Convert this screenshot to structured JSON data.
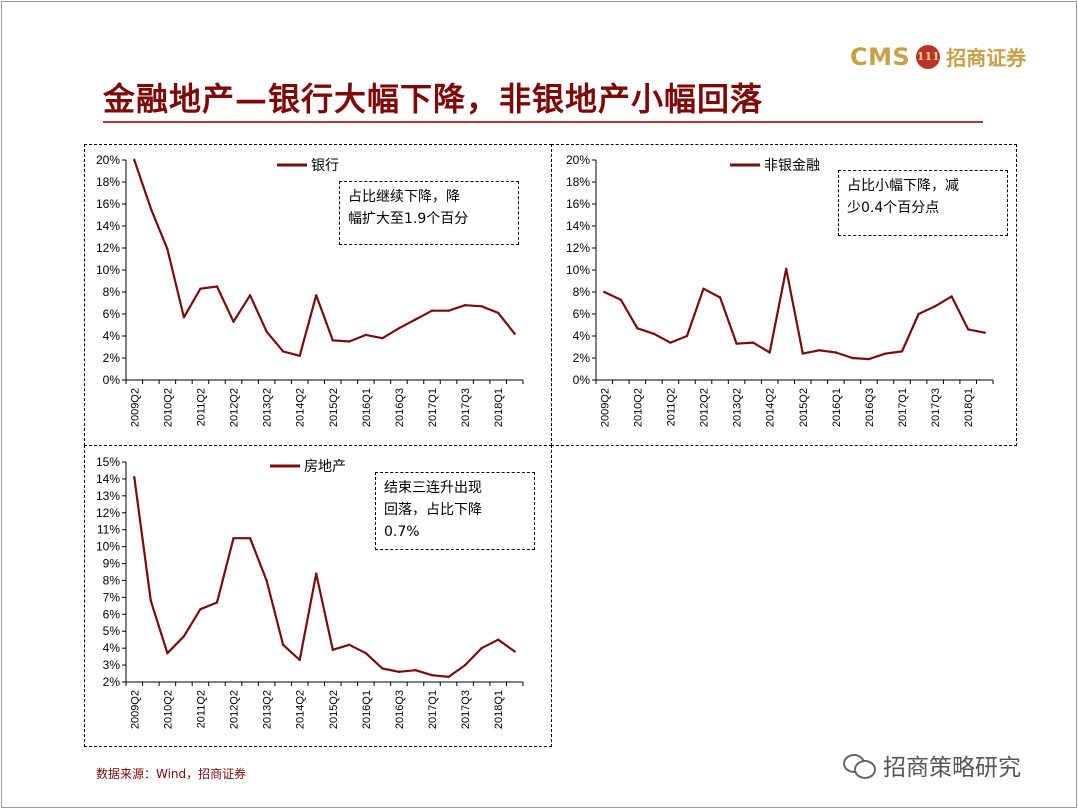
{
  "header": {
    "logo_cms": "CMS",
    "logo_badge": "111",
    "logo_name": "招商证券",
    "title": "金融地产—银行大幅下降，非银地产小幅回落"
  },
  "chart_data": [
    {
      "type": "line",
      "legend": "银行",
      "series_color": "#7b0c0c",
      "x": [
        "2009Q2",
        "2009Q4",
        "2010Q2",
        "2010Q4",
        "2011Q2",
        "2011Q4",
        "2012Q2",
        "2012Q4",
        "2013Q2",
        "2013Q4",
        "2014Q2",
        "2014Q4",
        "2015Q2",
        "2015Q4",
        "2016Q1",
        "2016Q2",
        "2016Q3",
        "2016Q4",
        "2017Q1",
        "2017Q2",
        "2017Q3",
        "2017Q4",
        "2018Q1",
        "2018Q2"
      ],
      "x_tick_labels": [
        "2009Q2",
        "2010Q2",
        "2011Q2",
        "2012Q2",
        "2013Q2",
        "2014Q2",
        "2015Q2",
        "2016Q1",
        "2016Q3",
        "2017Q1",
        "2017Q3",
        "2018Q1"
      ],
      "values": [
        20.0,
        15.6,
        11.9,
        5.7,
        8.3,
        8.5,
        5.3,
        7.7,
        4.4,
        2.6,
        2.2,
        7.7,
        3.6,
        3.5,
        4.1,
        3.8,
        4.7,
        5.5,
        6.3,
        6.3,
        6.8,
        6.7,
        6.1,
        4.2
      ],
      "y_ticks": [
        "0%",
        "2%",
        "4%",
        "6%",
        "8%",
        "10%",
        "12%",
        "14%",
        "16%",
        "18%",
        "20%"
      ],
      "ylim": [
        0,
        20
      ],
      "annotation": [
        "占比继续下降，降",
        "幅扩大至1.9个百分"
      ]
    },
    {
      "type": "line",
      "legend": "非银金融",
      "series_color": "#7b0c0c",
      "x": [
        "2009Q2",
        "2009Q4",
        "2010Q2",
        "2010Q4",
        "2011Q2",
        "2011Q4",
        "2012Q2",
        "2012Q4",
        "2013Q2",
        "2013Q4",
        "2014Q2",
        "2014Q4",
        "2015Q2",
        "2015Q4",
        "2016Q1",
        "2016Q2",
        "2016Q3",
        "2016Q4",
        "2017Q1",
        "2017Q2",
        "2017Q3",
        "2017Q4",
        "2018Q1",
        "2018Q2"
      ],
      "x_tick_labels": [
        "2009Q2",
        "2010Q2",
        "2011Q2",
        "2012Q2",
        "2013Q2",
        "2014Q2",
        "2015Q2",
        "2016Q1",
        "2016Q3",
        "2017Q1",
        "2017Q3",
        "2018Q1"
      ],
      "values": [
        8.0,
        7.3,
        4.7,
        4.2,
        3.4,
        4.0,
        8.3,
        7.5,
        3.3,
        3.4,
        2.5,
        10.1,
        2.4,
        2.7,
        2.5,
        2.0,
        1.9,
        2.4,
        2.6,
        6.0,
        6.7,
        7.6,
        4.6,
        4.3
      ],
      "y_ticks": [
        "0%",
        "2%",
        "4%",
        "6%",
        "8%",
        "10%",
        "12%",
        "14%",
        "16%",
        "18%",
        "20%"
      ],
      "ylim": [
        0,
        20
      ],
      "annotation": [
        "占比小幅下降，减",
        "少0.4个百分点"
      ]
    },
    {
      "type": "line",
      "legend": "房地产",
      "series_color": "#7b0c0c",
      "x": [
        "2009Q2",
        "2009Q4",
        "2010Q2",
        "2010Q4",
        "2011Q2",
        "2011Q4",
        "2012Q2",
        "2012Q4",
        "2013Q2",
        "2013Q4",
        "2014Q2",
        "2014Q4",
        "2015Q2",
        "2015Q4",
        "2016Q1",
        "2016Q2",
        "2016Q3",
        "2016Q4",
        "2017Q1",
        "2017Q2",
        "2017Q3",
        "2017Q4",
        "2018Q1",
        "2018Q2"
      ],
      "x_tick_labels": [
        "2009Q2",
        "2010Q2",
        "2011Q2",
        "2012Q2",
        "2013Q2",
        "2014Q2",
        "2015Q2",
        "2016Q1",
        "2016Q3",
        "2017Q1",
        "2017Q3",
        "2018Q1"
      ],
      "values": [
        14.1,
        6.8,
        3.7,
        4.7,
        6.3,
        6.7,
        10.5,
        10.5,
        8.0,
        4.2,
        3.3,
        8.4,
        3.9,
        4.2,
        3.7,
        2.8,
        2.6,
        2.7,
        2.4,
        2.3,
        3.0,
        4.0,
        4.5,
        3.8
      ],
      "y_ticks": [
        "2%",
        "3%",
        "4%",
        "5%",
        "6%",
        "7%",
        "8%",
        "9%",
        "10%",
        "11%",
        "12%",
        "13%",
        "14%",
        "15%"
      ],
      "ylim": [
        2,
        15
      ],
      "annotation": [
        "结束三连升出现",
        "回落，占比下降",
        "0.7%"
      ]
    }
  ],
  "footer": {
    "source": "数据来源：Wind，招商证券",
    "watermark": "招商策略研究"
  }
}
